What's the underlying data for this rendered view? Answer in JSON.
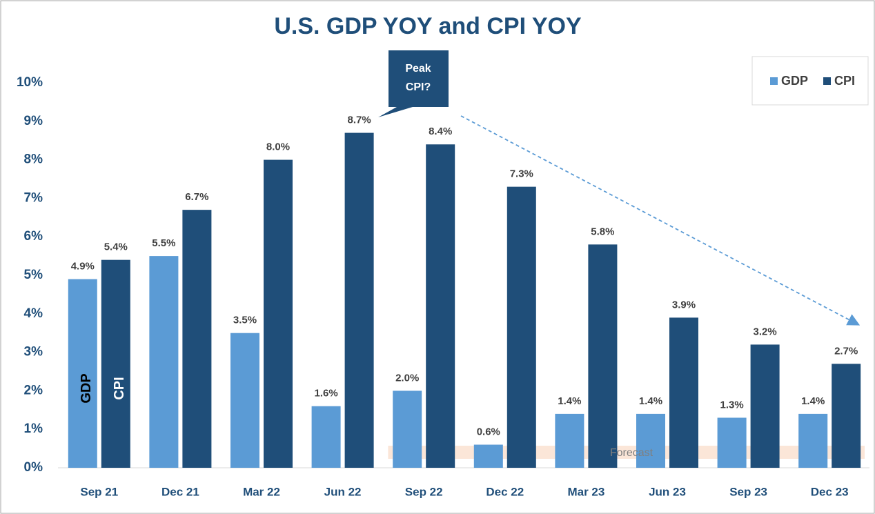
{
  "chart_data": {
    "type": "bar",
    "title": "U.S. GDP YOY and CPI YOY",
    "categories": [
      "Sep 21",
      "Dec 21",
      "Mar 22",
      "Jun 22",
      "Sep 22",
      "Dec 22",
      "Mar 23",
      "Jun 23",
      "Sep 23",
      "Dec 23"
    ],
    "series": [
      {
        "name": "GDP",
        "color": "#5b9bd5",
        "values": [
          4.9,
          5.5,
          3.5,
          1.6,
          2.0,
          0.6,
          1.4,
          1.4,
          1.3,
          1.4
        ],
        "value_labels": [
          "4.9%",
          "5.5%",
          "3.5%",
          "1.6%",
          "2.0%",
          "0.6%",
          "1.4%",
          "1.4%",
          "1.3%",
          "1.4%"
        ]
      },
      {
        "name": "CPI",
        "color": "#1f4e79",
        "values": [
          5.4,
          6.7,
          8.0,
          8.7,
          8.4,
          7.3,
          5.8,
          3.9,
          3.2,
          2.7
        ],
        "value_labels": [
          "5.4%",
          "6.7%",
          "8.0%",
          "8.7%",
          "8.4%",
          "7.3%",
          "5.8%",
          "3.9%",
          "3.2%",
          "2.7%"
        ]
      }
    ],
    "ylim": [
      0,
      10
    ],
    "yticks": [
      {
        "value": 0,
        "label": "0%"
      },
      {
        "value": 1,
        "label": "1%"
      },
      {
        "value": 2,
        "label": "2%"
      },
      {
        "value": 3,
        "label": "3%"
      },
      {
        "value": 4,
        "label": "4%"
      },
      {
        "value": 5,
        "label": "5%"
      },
      {
        "value": 6,
        "label": "6%"
      },
      {
        "value": 7,
        "label": "7%"
      },
      {
        "value": 8,
        "label": "8%"
      },
      {
        "value": 9,
        "label": "9%"
      },
      {
        "value": 10,
        "label": "10%"
      }
    ],
    "grid": false,
    "legend": "top-right",
    "annotations": {
      "callout": [
        "Peak",
        "CPI?"
      ],
      "forecast": "Forecast"
    }
  }
}
